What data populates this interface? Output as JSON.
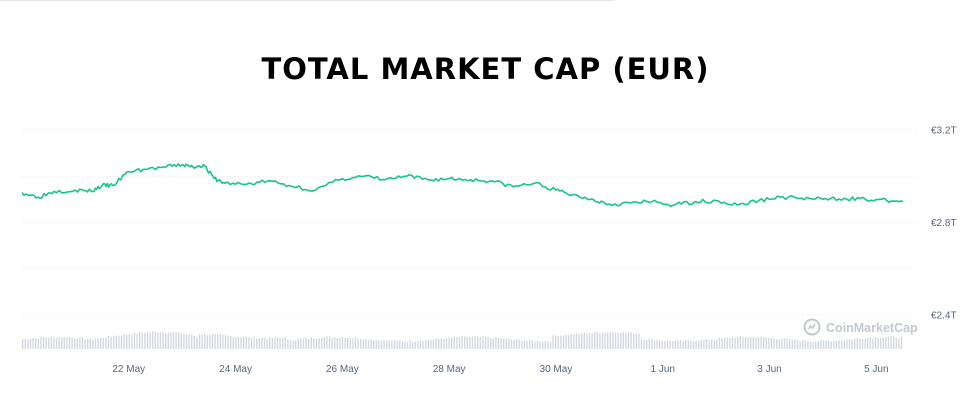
{
  "chart_data": {
    "type": "line",
    "title": "TOTAL MARKET CAP (EUR)",
    "y_ticks": [
      {
        "value": 3.2,
        "label": "€3.2T"
      },
      {
        "value": 2.8,
        "label": "€2.8T"
      },
      {
        "value": 2.4,
        "label": "€2.4T"
      }
    ],
    "x_ticks": [
      {
        "value": 22,
        "label": "22 May"
      },
      {
        "value": 24,
        "label": "24 May"
      },
      {
        "value": 26,
        "label": "26 May"
      },
      {
        "value": 28,
        "label": "28 May"
      },
      {
        "value": 30,
        "label": "30 May"
      },
      {
        "value": 32,
        "label": "1 Jun"
      },
      {
        "value": 34,
        "label": "3 Jun"
      },
      {
        "value": 36,
        "label": "5 Jun"
      }
    ],
    "ylim": [
      2.37,
      3.2
    ],
    "grid": true,
    "x_unit": "day of May (32 = 1 Jun)",
    "series": [
      {
        "color": "#16c784",
        "points": [
          [
            20.0,
            2.93
          ],
          [
            20.3,
            2.91
          ],
          [
            20.6,
            2.935
          ],
          [
            21.0,
            2.94
          ],
          [
            21.3,
            2.935
          ],
          [
            21.5,
            2.96
          ],
          [
            21.7,
            2.96
          ],
          [
            22.0,
            3.02
          ],
          [
            22.3,
            3.03
          ],
          [
            22.7,
            3.04
          ],
          [
            23.0,
            3.05
          ],
          [
            23.2,
            3.04
          ],
          [
            23.4,
            3.05
          ],
          [
            23.6,
            2.99
          ],
          [
            23.8,
            2.97
          ],
          [
            24.2,
            2.965
          ],
          [
            24.6,
            2.98
          ],
          [
            25.0,
            2.96
          ],
          [
            25.5,
            2.94
          ],
          [
            26.0,
            2.99
          ],
          [
            26.4,
            3.0
          ],
          [
            26.8,
            2.985
          ],
          [
            27.2,
            3.0
          ],
          [
            27.6,
            2.985
          ],
          [
            28.0,
            2.99
          ],
          [
            28.4,
            2.985
          ],
          [
            28.8,
            2.98
          ],
          [
            29.2,
            2.955
          ],
          [
            29.6,
            2.97
          ],
          [
            30.0,
            2.94
          ],
          [
            30.3,
            2.92
          ],
          [
            30.7,
            2.9
          ],
          [
            31.0,
            2.88
          ],
          [
            31.4,
            2.885
          ],
          [
            31.8,
            2.89
          ],
          [
            32.2,
            2.875
          ],
          [
            32.6,
            2.89
          ],
          [
            33.0,
            2.895
          ],
          [
            33.4,
            2.875
          ],
          [
            33.8,
            2.895
          ],
          [
            34.2,
            2.91
          ],
          [
            34.6,
            2.905
          ],
          [
            35.0,
            2.9
          ],
          [
            35.4,
            2.905
          ],
          [
            35.8,
            2.9
          ],
          [
            36.2,
            2.895
          ],
          [
            36.5,
            2.89
          ]
        ]
      }
    ],
    "volume_bars": true
  },
  "watermark": {
    "text": "CoinMarketCap",
    "icon": "coinmarketcap-logo-icon"
  }
}
